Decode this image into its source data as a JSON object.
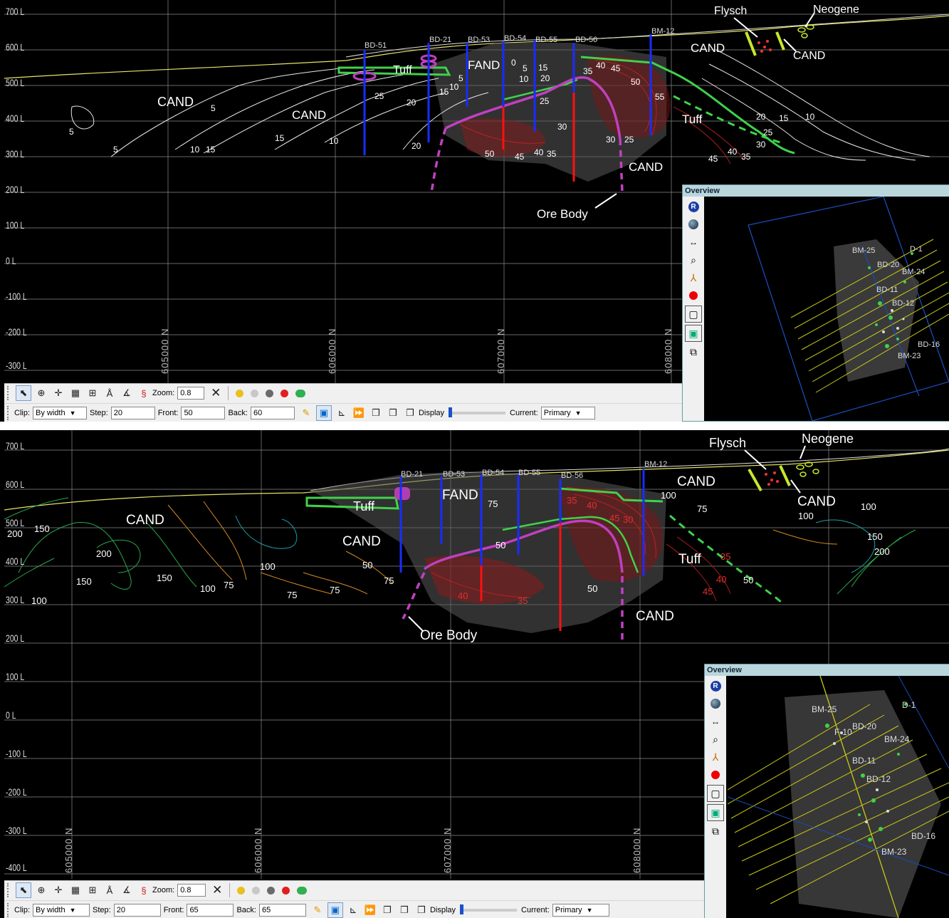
{
  "panels": [
    {
      "id": "top",
      "levels": [
        "700 L",
        "600 L",
        "500 L",
        "400 L",
        "300 L",
        "200 L",
        "100 L",
        "0 L",
        "-100 L",
        "-200 L",
        "-300 L"
      ],
      "northings": [
        "605000 N",
        "606000 N",
        "607000 N",
        "608000 N"
      ],
      "drillholes": [
        "BD-51",
        "BD-21",
        "BD-53",
        "BD-54",
        "BD-55",
        "BD-56",
        "BM-12"
      ],
      "units": {
        "flysch": "Flysch",
        "neogene": "Neogene",
        "cand": "CAND",
        "fand": "FAND",
        "tuff": "Tuff",
        "ore_body": "Ore Body"
      },
      "contour_labels": [
        "5",
        "5",
        "5",
        "10",
        "15",
        "15",
        "10",
        "20",
        "25",
        "20",
        "15",
        "10",
        "5",
        "5",
        "10",
        "15",
        "20",
        "25",
        "30",
        "35",
        "40",
        "45",
        "50",
        "55",
        "30",
        "25",
        "50",
        "45",
        "40",
        "35",
        "20",
        "15",
        "10",
        "25",
        "30",
        "45",
        "40",
        "35",
        "0"
      ],
      "toolbar": {
        "zoom_label": "Zoom:",
        "zoom_value": "0.8",
        "clip_label": "Clip:",
        "clip_value": "By width",
        "step_label": "Step:",
        "step_value": "20",
        "front_label": "Front:",
        "front_value": "50",
        "back_label": "Back:",
        "back_value": "60",
        "display_label": "Display",
        "current_label": "Current:",
        "current_value": "Primary"
      },
      "overview": {
        "title": "Overview",
        "holes": [
          "BM-25",
          "D-1",
          "BD-20",
          "BM-24",
          "BD-11",
          "BD-12",
          "BD-16",
          "BM-23"
        ]
      }
    },
    {
      "id": "bottom",
      "levels": [
        "700 L",
        "600 L",
        "500 L",
        "400 L",
        "300 L",
        "200 L",
        "100 L",
        "0 L",
        "-100 L",
        "-200 L",
        "-300 L",
        "-400 L"
      ],
      "northings": [
        "605000 N",
        "606000 N",
        "607000 N",
        "608000 N"
      ],
      "drillholes": [
        "BD-21",
        "BD-53",
        "BD-54",
        "BD-55",
        "BD-56",
        "BM-12"
      ],
      "units": {
        "flysch": "Flysch",
        "neogene": "Neogene",
        "cand": "CAND",
        "fand": "FAND",
        "tuff": "Tuff",
        "ore_body": "Ore Body"
      },
      "contour_labels": [
        "200",
        "150",
        "200",
        "150",
        "150",
        "100",
        "75",
        "100",
        "100",
        "75",
        "75",
        "50",
        "75",
        "50",
        "75",
        "100",
        "75",
        "100",
        "100",
        "150",
        "200",
        "35",
        "40",
        "45",
        "50",
        "40",
        "35",
        "45",
        "50",
        "30",
        "40",
        "35"
      ],
      "toolbar": {
        "zoom_label": "Zoom:",
        "zoom_value": "0.8",
        "clip_label": "Clip:",
        "clip_value": "By width",
        "step_label": "Step:",
        "step_value": "20",
        "front_label": "Front:",
        "front_value": "65",
        "back_label": "Back:",
        "back_value": "65",
        "display_label": "Display",
        "current_label": "Current:",
        "current_value": "Primary"
      },
      "overview": {
        "title": "Overview",
        "holes": [
          "BM-25",
          "D-1",
          "BD-20",
          "BM-24",
          "BD-11",
          "BD-12",
          "BD-16",
          "BM-23",
          "F-10"
        ]
      }
    }
  ],
  "colors": {
    "grid": "#ffffff",
    "tuff": "#3fd24a",
    "ore_body": "#c040c0",
    "flysch": "#c8e62a",
    "drill_blue": "#1a2cff",
    "drill_red": "#ff1010",
    "contour_red": "#d01818",
    "contour_orange": "#d58a20",
    "contour_green": "#2aa84a",
    "contour_teal": "#1aa0a8",
    "overview_header": "#b9d6dc"
  },
  "icons": [
    "select-icon",
    "pan-icon",
    "move-icon",
    "grid-icon",
    "legend-icon",
    "measure-icon",
    "angle-icon",
    "section-icon",
    "close-x-icon",
    "yellow-dot-icon",
    "grey-dot-icon",
    "dark-dot-icon",
    "red-dot-icon",
    "green-capsule-icon",
    "rotate-R-icon",
    "globe-icon",
    "arrows-icon",
    "magnifier-icon",
    "axes-icon",
    "red-ball-icon",
    "box-icon",
    "image-icon",
    "cube-icon"
  ]
}
